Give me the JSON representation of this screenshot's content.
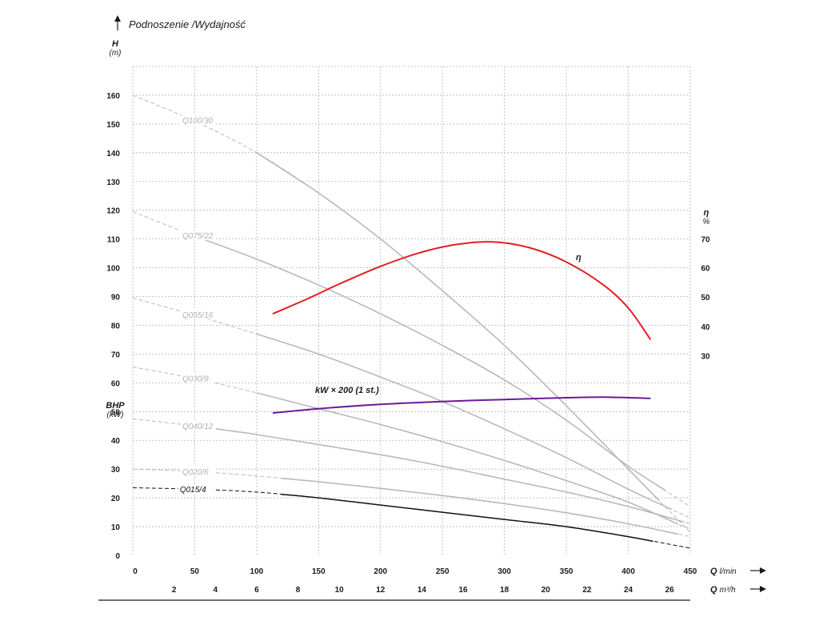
{
  "chart_data": {
    "type": "line",
    "title": "Podnoszenie /Wydajność",
    "y_axis_left": {
      "label": "H",
      "unit": "(m)",
      "range": [
        0,
        160
      ],
      "ticks": [
        "0",
        "10",
        "20",
        "30",
        "40",
        "50",
        "60",
        "70",
        "80",
        "90",
        "100",
        "110",
        "120",
        "130",
        "140",
        "150",
        "160"
      ]
    },
    "bhp_axis": {
      "label": "BHP",
      "unit": "(kW)"
    },
    "y_axis_right": {
      "label": "η",
      "unit": "%",
      "ticks": [
        {
          "value": 70,
          "h_equiv": 110
        },
        {
          "value": 60,
          "h_equiv": 100
        },
        {
          "value": 50,
          "h_equiv": 89.8
        },
        {
          "value": 40,
          "h_equiv": 79.6
        },
        {
          "value": 30,
          "h_equiv": 69.4
        }
      ]
    },
    "x_axis_primary": {
      "label": "Q",
      "unit": "l/min",
      "range": [
        0,
        450
      ],
      "ticks": [
        "0",
        "50",
        "100",
        "150",
        "200",
        "250",
        "300",
        "350",
        "400",
        "450"
      ]
    },
    "x_axis_secondary": {
      "label": "Q",
      "unit": "m³/h",
      "ticks": [
        "2",
        "4",
        "6",
        "8",
        "10",
        "12",
        "14",
        "16",
        "18",
        "20",
        "22",
        "24",
        "26"
      ]
    },
    "grid": true,
    "series": [
      {
        "name": "Q100/30",
        "style": "gray",
        "points": [
          [
            0,
            160
          ],
          [
            50,
            151
          ],
          [
            100,
            140
          ],
          [
            150,
            126
          ],
          [
            200,
            110
          ],
          [
            250,
            92
          ],
          [
            300,
            73
          ],
          [
            350,
            52
          ],
          [
            400,
            30
          ],
          [
            450,
            8
          ]
        ],
        "solid_range": [
          100,
          425
        ]
      },
      {
        "name": "Q075/22",
        "style": "gray",
        "points": [
          [
            0,
            119.5
          ],
          [
            50,
            111
          ],
          [
            100,
            103
          ],
          [
            150,
            94
          ],
          [
            200,
            84
          ],
          [
            250,
            73
          ],
          [
            300,
            61
          ],
          [
            350,
            47
          ],
          [
            400,
            31
          ],
          [
            450,
            17
          ]
        ],
        "solid_range": [
          60,
          430
        ]
      },
      {
        "name": "Q055/16",
        "style": "gray",
        "points": [
          [
            0,
            89.5
          ],
          [
            50,
            83.5
          ],
          [
            100,
            77
          ],
          [
            150,
            70
          ],
          [
            200,
            62
          ],
          [
            250,
            53.5
          ],
          [
            300,
            44
          ],
          [
            350,
            34
          ],
          [
            400,
            23
          ],
          [
            450,
            13
          ]
        ],
        "solid_range": [
          100,
          435
        ]
      },
      {
        "name": "Q030/9",
        "style": "gray",
        "points": [
          [
            0,
            65.5
          ],
          [
            50,
            61.5
          ],
          [
            100,
            56.5
          ],
          [
            150,
            51
          ],
          [
            200,
            45.5
          ],
          [
            250,
            39.5
          ],
          [
            300,
            33
          ],
          [
            350,
            26
          ],
          [
            400,
            18.5
          ],
          [
            450,
            9
          ]
        ],
        "solid_range": [
          100,
          440
        ]
      },
      {
        "name": "Q040/12",
        "style": "gray",
        "points": [
          [
            0,
            47.5
          ],
          [
            50,
            45
          ],
          [
            100,
            42
          ],
          [
            150,
            38.5
          ],
          [
            200,
            35
          ],
          [
            250,
            31
          ],
          [
            300,
            26.5
          ],
          [
            350,
            22
          ],
          [
            400,
            17
          ],
          [
            450,
            11
          ]
        ],
        "solid_range": [
          60,
          445
        ]
      },
      {
        "name": "Q020/6",
        "style": "gray",
        "points": [
          [
            0,
            30
          ],
          [
            50,
            29.2
          ],
          [
            100,
            27.6
          ],
          [
            150,
            25.6
          ],
          [
            200,
            23.3
          ],
          [
            250,
            20.8
          ],
          [
            300,
            18
          ],
          [
            350,
            14.8
          ],
          [
            400,
            11
          ],
          [
            450,
            6.5
          ]
        ],
        "solid_range": [
          120,
          440
        ]
      },
      {
        "name": "Q015/4",
        "style": "black",
        "points": [
          [
            0,
            23.5
          ],
          [
            50,
            23
          ],
          [
            100,
            22
          ],
          [
            150,
            20
          ],
          [
            200,
            17.5
          ],
          [
            250,
            15
          ],
          [
            300,
            12.5
          ],
          [
            350,
            10
          ],
          [
            400,
            6.5
          ],
          [
            450,
            2.5
          ]
        ],
        "solid_range": [
          120,
          420
        ]
      },
      {
        "name": "η",
        "color": "#e31e24",
        "axis": "right",
        "points": [
          [
            113,
            84
          ],
          [
            140,
            89
          ],
          [
            170,
            95
          ],
          [
            200,
            100.5
          ],
          [
            230,
            105
          ],
          [
            260,
            108
          ],
          [
            290,
            109
          ],
          [
            320,
            107
          ],
          [
            350,
            102
          ],
          [
            380,
            94
          ],
          [
            400,
            86
          ],
          [
            418,
            75
          ]
        ]
      },
      {
        "name": "kW × 200 (1 st.)",
        "color": "#6a1b9a",
        "axis": "bhp",
        "points": [
          [
            113,
            49.5
          ],
          [
            150,
            51
          ],
          [
            200,
            52.5
          ],
          [
            250,
            53.5
          ],
          [
            300,
            54.2
          ],
          [
            350,
            54.8
          ],
          [
            380,
            55
          ],
          [
            418,
            54.6
          ]
        ]
      }
    ]
  }
}
